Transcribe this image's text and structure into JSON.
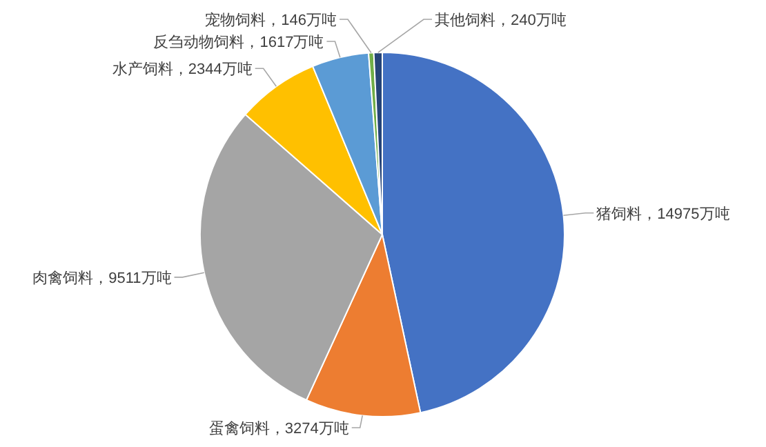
{
  "chart_data": {
    "type": "pie",
    "categories": [
      "猪饲料",
      "蛋禽饲料",
      "肉禽饲料",
      "水产饲料",
      "反刍动物饲料",
      "宠物饲料",
      "其他饲料"
    ],
    "values": [
      14975,
      3274,
      9511,
      2344,
      1617,
      146,
      240
    ],
    "colors": [
      "#4472c4",
      "#ed7d31",
      "#a5a5a5",
      "#ffc000",
      "#5b9bd5",
      "#70ad47",
      "#264478"
    ],
    "value_labels": [
      "14975万吨",
      "3274万吨",
      "9511万吨",
      "2344万吨",
      "1617万吨",
      "146万吨",
      "240万吨"
    ],
    "legend": false
  }
}
